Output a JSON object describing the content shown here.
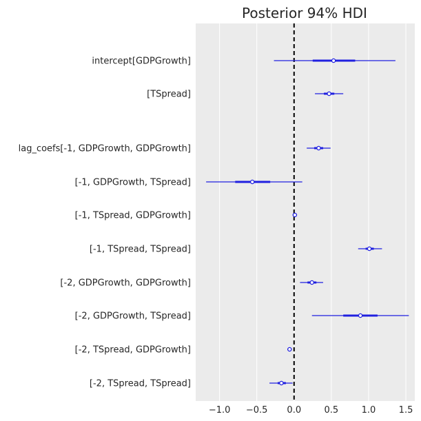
{
  "chart_data": {
    "type": "forest",
    "title": "Posterior 94% HDI",
    "xlabel": "",
    "ylabel": "",
    "xlim": [
      -1.32,
      1.62
    ],
    "x_ticks": [
      -1.0,
      -0.5,
      0.0,
      0.5,
      1.0,
      1.5
    ],
    "x_tick_labels": [
      "−1.0",
      "−0.5",
      "0.0",
      "0.5",
      "1.0",
      "1.5"
    ],
    "reference_line": 0.0,
    "grid": "vertical",
    "colors": {
      "series": "#1f1fe0",
      "background": "#ebebeb",
      "grid": "#ffffff",
      "reference": "#000000"
    },
    "rows": [
      {
        "label": "intercept[GDPGrowth]",
        "hdi_low": -0.27,
        "iqr_low": 0.25,
        "median": 0.53,
        "iqr_high": 0.82,
        "hdi_high": 1.36
      },
      {
        "label": "[TSpread]",
        "hdi_low": 0.28,
        "iqr_low": 0.4,
        "median": 0.47,
        "iqr_high": 0.54,
        "hdi_high": 0.66
      },
      {
        "label": "lag_coefs[-1, GDPGrowth, GDPGrowth]",
        "hdi_low": 0.17,
        "iqr_low": 0.27,
        "median": 0.33,
        "iqr_high": 0.39,
        "hdi_high": 0.49
      },
      {
        "label": "[-1, GDPGrowth, TSpread]",
        "hdi_low": -1.18,
        "iqr_low": -0.79,
        "median": -0.56,
        "iqr_high": -0.32,
        "hdi_high": 0.11
      },
      {
        "label": "[-1, TSpread, GDPGrowth]",
        "hdi_low": -0.01,
        "iqr_low": 0.0,
        "median": 0.01,
        "iqr_high": 0.02,
        "hdi_high": 0.03
      },
      {
        "label": "[-1, TSpread, TSpread]",
        "hdi_low": 0.86,
        "iqr_low": 0.96,
        "median": 1.01,
        "iqr_high": 1.07,
        "hdi_high": 1.18
      },
      {
        "label": "[-2, GDPGrowth, GDPGrowth]",
        "hdi_low": 0.08,
        "iqr_low": 0.18,
        "median": 0.24,
        "iqr_high": 0.3,
        "hdi_high": 0.39
      },
      {
        "label": "[-2, GDPGrowth, TSpread]",
        "hdi_low": 0.24,
        "iqr_low": 0.66,
        "median": 0.89,
        "iqr_high": 1.12,
        "hdi_high": 1.54
      },
      {
        "label": "[-2, TSpread, GDPGrowth]",
        "hdi_low": -0.09,
        "iqr_low": -0.08,
        "median": -0.06,
        "iqr_high": -0.05,
        "hdi_high": -0.04
      },
      {
        "label": "[-2, TSpread, TSpread]",
        "hdi_low": -0.33,
        "iqr_low": -0.22,
        "median": -0.17,
        "iqr_high": -0.11,
        "hdi_high": -0.02
      }
    ]
  }
}
